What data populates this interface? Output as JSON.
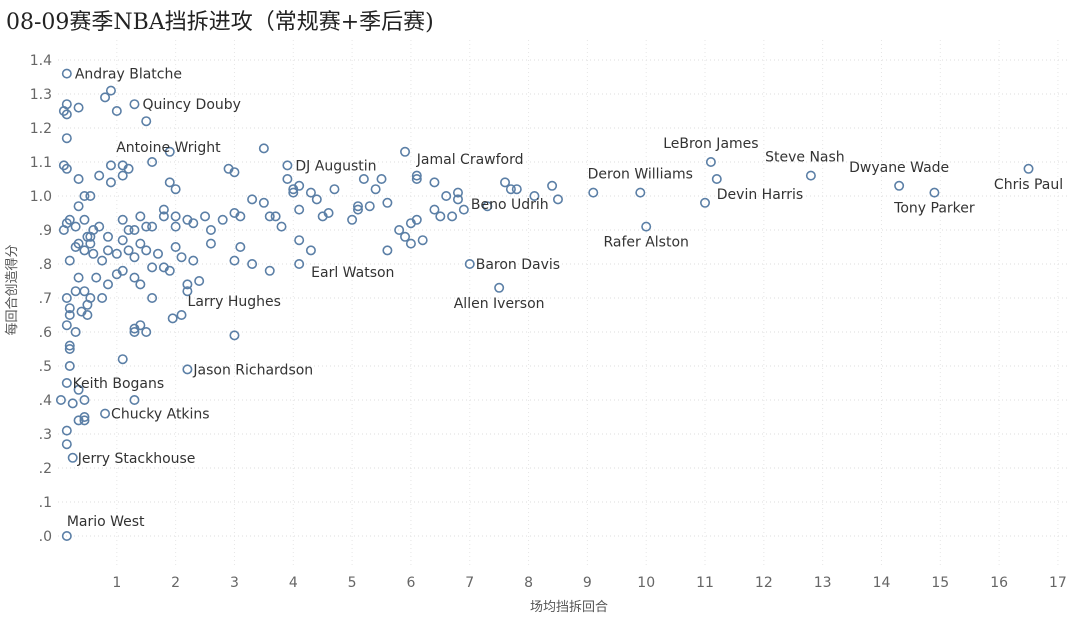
{
  "chart_data": {
    "type": "scatter",
    "title": "08-09赛季NBA挡拆进攻（常规赛+季后赛)",
    "xlabel": "场均挡拆回合",
    "ylabel": "每回合创造得分",
    "xlim": [
      0,
      17.3
    ],
    "ylim": [
      -0.08,
      1.45
    ],
    "xticks": [
      1,
      2,
      3,
      4,
      5,
      6,
      7,
      8,
      9,
      10,
      11,
      12,
      13,
      14,
      15,
      16,
      17
    ],
    "yticks": [
      {
        "v": 0.0,
        "label": ".0"
      },
      {
        "v": 0.1,
        "label": ".1"
      },
      {
        "v": 0.2,
        "label": ".2"
      },
      {
        "v": 0.3,
        "label": ".3"
      },
      {
        "v": 0.4,
        "label": ".4"
      },
      {
        "v": 0.5,
        "label": ".5"
      },
      {
        "v": 0.6,
        "label": ".6"
      },
      {
        "v": 0.7,
        "label": ".7"
      },
      {
        "v": 0.8,
        "label": ".8"
      },
      {
        "v": 0.9,
        "label": ".9"
      },
      {
        "v": 1.0,
        "label": "1.0"
      },
      {
        "v": 1.1,
        "label": "1.1"
      },
      {
        "v": 1.2,
        "label": "1.2"
      },
      {
        "v": 1.3,
        "label": "1.3"
      },
      {
        "v": 1.4,
        "label": "1.4"
      }
    ],
    "labeled_points": [
      {
        "name": "Andray Blatche",
        "x": 0.15,
        "y": 1.36
      },
      {
        "name": "Quincy Douby",
        "x": 1.3,
        "y": 1.27
      },
      {
        "name": "Antoine Wright",
        "x": 1.5,
        "y": 1.22
      },
      {
        "name": "DJ Augustin",
        "x": 3.9,
        "y": 1.09
      },
      {
        "name": "Jamal Crawford",
        "x": 6.1,
        "y": 1.05
      },
      {
        "name": "LeBron James",
        "x": 11.1,
        "y": 1.1
      },
      {
        "name": "Steve Nash",
        "x": 12.8,
        "y": 1.06
      },
      {
        "name": "Dwyane Wade",
        "x": 14.3,
        "y": 1.03
      },
      {
        "name": "Chris Paul",
        "x": 16.5,
        "y": 1.08
      },
      {
        "name": "Deron Williams",
        "x": 9.9,
        "y": 1.01
      },
      {
        "name": "Devin Harris",
        "x": 11.2,
        "y": 1.05
      },
      {
        "name": "Tony Parker",
        "x": 14.9,
        "y": 1.01
      },
      {
        "name": "Beno Udrih",
        "x": 7.8,
        "y": 1.02
      },
      {
        "name": "Rafer Alston",
        "x": 10.0,
        "y": 0.91
      },
      {
        "name": "Earl Watson",
        "x": 4.1,
        "y": 0.8
      },
      {
        "name": "Baron Davis",
        "x": 7.0,
        "y": 0.8
      },
      {
        "name": "Allen Iverson",
        "x": 7.5,
        "y": 0.73
      },
      {
        "name": "Larry Hughes",
        "x": 2.1,
        "y": 0.65
      },
      {
        "name": "Jason Richardson",
        "x": 2.2,
        "y": 0.49
      },
      {
        "name": "Keith Bogans",
        "x": 0.35,
        "y": 0.43
      },
      {
        "name": "Chucky Atkins",
        "x": 0.8,
        "y": 0.36
      },
      {
        "name": "Jerry Stackhouse",
        "x": 0.25,
        "y": 0.23
      },
      {
        "name": "Mario West",
        "x": 0.15,
        "y": 0.0
      }
    ],
    "points": [
      [
        0.1,
        1.25
      ],
      [
        0.15,
        1.27
      ],
      [
        0.15,
        1.24
      ],
      [
        0.15,
        1.17
      ],
      [
        0.35,
        1.26
      ],
      [
        0.8,
        1.29
      ],
      [
        0.9,
        1.31
      ],
      [
        1.0,
        1.25
      ],
      [
        0.1,
        1.09
      ],
      [
        0.15,
        1.08
      ],
      [
        0.35,
        1.05
      ],
      [
        0.45,
        1.0
      ],
      [
        0.55,
        1.0
      ],
      [
        0.7,
        1.06
      ],
      [
        0.9,
        1.09
      ],
      [
        0.9,
        1.04
      ],
      [
        1.1,
        1.09
      ],
      [
        1.1,
        1.06
      ],
      [
        1.2,
        1.08
      ],
      [
        1.6,
        1.1
      ],
      [
        1.9,
        1.13
      ],
      [
        1.9,
        1.04
      ],
      [
        2.0,
        1.02
      ],
      [
        2.9,
        1.08
      ],
      [
        3.0,
        1.07
      ],
      [
        3.5,
        1.14
      ],
      [
        3.9,
        1.05
      ],
      [
        4.0,
        1.02
      ],
      [
        4.0,
        1.01
      ],
      [
        4.1,
        1.03
      ],
      [
        4.3,
        1.01
      ],
      [
        4.4,
        0.99
      ],
      [
        4.7,
        1.02
      ],
      [
        5.2,
        1.05
      ],
      [
        5.4,
        1.02
      ],
      [
        5.5,
        1.05
      ],
      [
        5.9,
        1.13
      ],
      [
        6.1,
        1.06
      ],
      [
        6.4,
        1.04
      ],
      [
        6.6,
        1.0
      ],
      [
        6.8,
        1.01
      ],
      [
        6.8,
        0.99
      ],
      [
        7.6,
        1.04
      ],
      [
        7.7,
        1.02
      ],
      [
        8.1,
        1.0
      ],
      [
        8.4,
        1.03
      ],
      [
        8.5,
        0.99
      ],
      [
        9.1,
        1.01
      ],
      [
        11.0,
        0.98
      ],
      [
        0.1,
        0.9
      ],
      [
        0.15,
        0.92
      ],
      [
        0.2,
        0.93
      ],
      [
        0.3,
        0.91
      ],
      [
        0.35,
        0.97
      ],
      [
        0.45,
        0.93
      ],
      [
        0.55,
        0.88
      ],
      [
        0.6,
        0.9
      ],
      [
        0.7,
        0.91
      ],
      [
        0.85,
        0.88
      ],
      [
        1.1,
        0.93
      ],
      [
        1.2,
        0.9
      ],
      [
        1.3,
        0.9
      ],
      [
        1.4,
        0.94
      ],
      [
        1.5,
        0.91
      ],
      [
        1.6,
        0.91
      ],
      [
        1.8,
        0.96
      ],
      [
        1.8,
        0.94
      ],
      [
        2.0,
        0.94
      ],
      [
        2.0,
        0.91
      ],
      [
        2.2,
        0.93
      ],
      [
        2.3,
        0.92
      ],
      [
        2.5,
        0.94
      ],
      [
        2.6,
        0.9
      ],
      [
        2.8,
        0.93
      ],
      [
        3.0,
        0.95
      ],
      [
        3.1,
        0.94
      ],
      [
        3.3,
        0.99
      ],
      [
        3.5,
        0.98
      ],
      [
        3.6,
        0.94
      ],
      [
        3.7,
        0.94
      ],
      [
        3.8,
        0.91
      ],
      [
        4.1,
        0.96
      ],
      [
        4.5,
        0.94
      ],
      [
        4.6,
        0.95
      ],
      [
        5.0,
        0.93
      ],
      [
        5.1,
        0.97
      ],
      [
        5.1,
        0.96
      ],
      [
        5.3,
        0.97
      ],
      [
        5.6,
        0.98
      ],
      [
        5.8,
        0.9
      ],
      [
        5.9,
        0.88
      ],
      [
        6.0,
        0.92
      ],
      [
        6.1,
        0.93
      ],
      [
        6.4,
        0.96
      ],
      [
        6.5,
        0.94
      ],
      [
        6.7,
        0.94
      ],
      [
        6.9,
        0.96
      ],
      [
        7.3,
        0.97
      ],
      [
        0.2,
        0.81
      ],
      [
        0.3,
        0.85
      ],
      [
        0.35,
        0.86
      ],
      [
        0.45,
        0.84
      ],
      [
        0.5,
        0.88
      ],
      [
        0.55,
        0.86
      ],
      [
        0.6,
        0.83
      ],
      [
        0.75,
        0.81
      ],
      [
        0.85,
        0.84
      ],
      [
        1.0,
        0.83
      ],
      [
        1.1,
        0.87
      ],
      [
        1.2,
        0.84
      ],
      [
        1.3,
        0.82
      ],
      [
        1.4,
        0.86
      ],
      [
        1.5,
        0.84
      ],
      [
        1.6,
        0.79
      ],
      [
        1.7,
        0.83
      ],
      [
        1.8,
        0.79
      ],
      [
        2.0,
        0.85
      ],
      [
        2.1,
        0.82
      ],
      [
        2.3,
        0.81
      ],
      [
        2.6,
        0.86
      ],
      [
        3.0,
        0.81
      ],
      [
        3.1,
        0.85
      ],
      [
        3.3,
        0.8
      ],
      [
        3.6,
        0.78
      ],
      [
        4.1,
        0.87
      ],
      [
        4.3,
        0.84
      ],
      [
        5.6,
        0.84
      ],
      [
        6.0,
        0.86
      ],
      [
        6.2,
        0.87
      ],
      [
        0.15,
        0.7
      ],
      [
        0.2,
        0.67
      ],
      [
        0.3,
        0.72
      ],
      [
        0.35,
        0.76
      ],
      [
        0.45,
        0.72
      ],
      [
        0.5,
        0.68
      ],
      [
        0.55,
        0.7
      ],
      [
        0.65,
        0.76
      ],
      [
        0.75,
        0.7
      ],
      [
        0.85,
        0.74
      ],
      [
        1.0,
        0.77
      ],
      [
        1.1,
        0.78
      ],
      [
        1.3,
        0.76
      ],
      [
        1.4,
        0.74
      ],
      [
        1.6,
        0.7
      ],
      [
        1.9,
        0.78
      ],
      [
        2.2,
        0.74
      ],
      [
        2.2,
        0.72
      ],
      [
        2.4,
        0.75
      ],
      [
        0.15,
        0.62
      ],
      [
        0.2,
        0.65
      ],
      [
        0.3,
        0.6
      ],
      [
        0.4,
        0.66
      ],
      [
        0.5,
        0.65
      ],
      [
        1.3,
        0.6
      ],
      [
        1.3,
        0.61
      ],
      [
        1.4,
        0.62
      ],
      [
        1.5,
        0.6
      ],
      [
        1.95,
        0.64
      ],
      [
        3.0,
        0.59
      ],
      [
        0.2,
        0.56
      ],
      [
        0.2,
        0.55
      ],
      [
        1.1,
        0.52
      ],
      [
        0.2,
        0.5
      ],
      [
        0.15,
        0.45
      ],
      [
        0.05,
        0.4
      ],
      [
        0.25,
        0.39
      ],
      [
        0.45,
        0.4
      ],
      [
        1.3,
        0.4
      ],
      [
        0.45,
        0.35
      ],
      [
        0.35,
        0.34
      ],
      [
        0.45,
        0.34
      ],
      [
        0.15,
        0.31
      ],
      [
        0.15,
        0.27
      ]
    ]
  }
}
